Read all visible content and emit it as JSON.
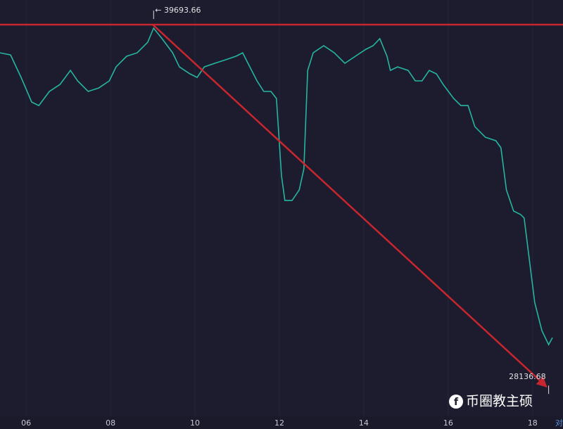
{
  "chart_data": {
    "type": "line",
    "x": [
      5.38,
      5.63,
      5.88,
      6.13,
      6.3,
      6.55,
      6.8,
      7.05,
      7.22,
      7.47,
      7.72,
      7.97,
      8.13,
      8.38,
      8.63,
      8.88,
      9.02,
      9.22,
      9.47,
      9.63,
      9.88,
      10.05,
      10.22,
      10.47,
      10.72,
      10.97,
      11.13,
      11.3,
      11.47,
      11.63,
      11.8,
      11.93,
      12.05,
      12.13,
      12.3,
      12.47,
      12.58,
      12.67,
      12.8,
      13.05,
      13.3,
      13.55,
      13.8,
      14.05,
      14.22,
      14.38,
      14.55,
      14.63,
      14.8,
      15.05,
      15.22,
      15.38,
      15.55,
      15.72,
      15.88,
      16.13,
      16.3,
      16.47,
      16.63,
      16.88,
      17.13,
      17.25,
      17.38,
      17.55,
      17.72,
      17.8,
      18.05,
      18.22,
      18.38,
      18.47
    ],
    "series": [
      {
        "color": "#26b5a0",
        "values": [
          38393,
          38328,
          37634,
          36875,
          36767,
          37201,
          37417,
          37851,
          37526,
          37201,
          37309,
          37526,
          37959,
          38285,
          38393,
          38718,
          39152,
          38827,
          38393,
          37959,
          37743,
          37634,
          37959,
          38068,
          38176,
          38285,
          38393,
          37959,
          37526,
          37201,
          37201,
          36984,
          34599,
          33840,
          33840,
          34165,
          34816,
          37851,
          38393,
          38610,
          38393,
          38068,
          38285,
          38501,
          38610,
          38827,
          38285,
          37851,
          37959,
          37851,
          37526,
          37526,
          37851,
          37743,
          37417,
          36984,
          36767,
          36767,
          36117,
          35791,
          35683,
          35466,
          34165,
          33515,
          33407,
          33298,
          30697,
          29829,
          29396,
          29613
        ]
      }
    ],
    "xlim": [
      5.38,
      18.47
    ],
    "ylim": [
      27230,
      40020
    ],
    "xticks": [
      {
        "value": 6,
        "label": "06"
      },
      {
        "value": 8,
        "label": "08"
      },
      {
        "value": 10,
        "label": "10"
      },
      {
        "value": 12,
        "label": "12"
      },
      {
        "value": 14,
        "label": "14"
      },
      {
        "value": 16,
        "label": "16"
      },
      {
        "value": 18,
        "label": "18"
      }
    ],
    "grid": true,
    "annotations": [
      {
        "x": 9.02,
        "value": 39693.66,
        "label": "← 39693.66"
      },
      {
        "x": 18.38,
        "value": 28136.68,
        "label": "28136.68"
      }
    ],
    "hline": {
      "value": 39260,
      "color": "#c8262e"
    },
    "trendline": {
      "x": [
        9.0,
        18.33
      ],
      "y": [
        39260,
        28100
      ],
      "color": "#c8262e"
    },
    "watermark": "币圈教主硕",
    "corner_label": "对"
  }
}
